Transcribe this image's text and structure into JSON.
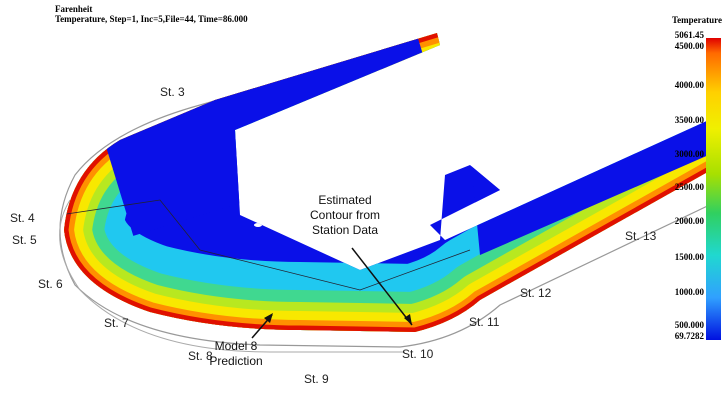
{
  "header": {
    "unit": "Farenheit",
    "caption": "Temperature, Step=1, Inc=5,File=44, Time=86.000"
  },
  "legend": {
    "title": "Temperature",
    "labels": [
      "5061.45",
      "4500.00",
      "4000.00",
      "3500.00",
      "3000.00",
      "2500.00",
      "2000.00",
      "1500.00",
      "1000.00",
      "500.000",
      "69.7282"
    ]
  },
  "stations": [
    "St. 3",
    "St. 4",
    "St. 5",
    "St. 6",
    "St. 7",
    "St. 8",
    "St. 9",
    "St. 10",
    "St. 11",
    "St. 12",
    "St. 13"
  ],
  "annotations": {
    "estimated": [
      "Estimated",
      "Contour from",
      "Station Data"
    ],
    "model": [
      "Model 8",
      "Prediction"
    ]
  }
}
